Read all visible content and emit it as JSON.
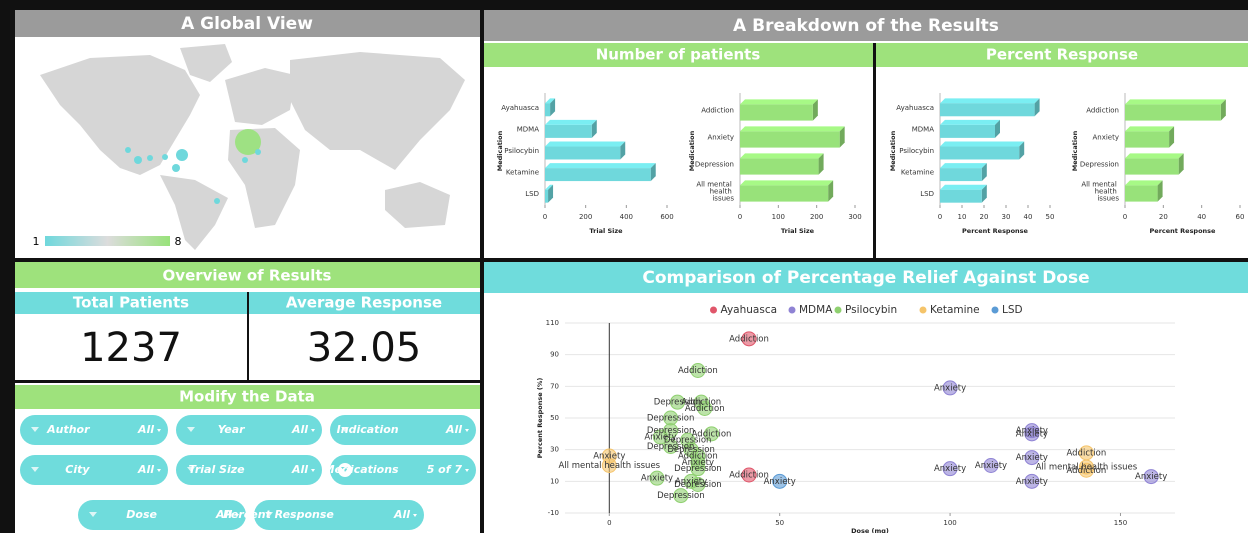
{
  "headers": {
    "global": "A Global View",
    "breakdown": "A Breakdown of the Results",
    "patients": "Number of patients",
    "percent": "Percent Response",
    "overview": "Overview of Results",
    "comparison": "Comparison of Percentage Relief Against Dose",
    "modify": "Modify the Data"
  },
  "map": {
    "legend_min": 1,
    "legend_max": 8
  },
  "kpis": [
    {
      "label": "Total Patients",
      "value": 1237
    },
    {
      "label": "Average Response",
      "value": 32.05
    }
  ],
  "filters": [
    {
      "name": "Author",
      "value": "All"
    },
    {
      "name": "Year",
      "value": "All"
    },
    {
      "name": "Indication",
      "value": "All"
    },
    {
      "name": "City",
      "value": "All"
    },
    {
      "name": "Trial Size",
      "value": "All"
    },
    {
      "name": "Medications",
      "value": "5 of 7"
    },
    {
      "name": "Dose",
      "value": "All"
    },
    {
      "name": "Percent Response",
      "value": "All"
    }
  ],
  "chart_data": [
    {
      "type": "bar",
      "orientation": "horizontal",
      "ylabel": "Medication",
      "xlabel": "Trial Size",
      "color": "#6fd8dc",
      "categories": [
        "Ayahuasca",
        "MDMA",
        "Psilocybin",
        "Ketamine",
        "LSD"
      ],
      "values": [
        25,
        230,
        370,
        520,
        15
      ],
      "xlim": [
        0,
        600
      ],
      "xticks": [
        0,
        200,
        400,
        600
      ]
    },
    {
      "type": "bar",
      "orientation": "horizontal",
      "ylabel": "Medication",
      "xlabel": "Trial Size",
      "color": "#98e27a",
      "categories": [
        "Addiction",
        "Anxiety",
        "Depression",
        "All mental health issues"
      ],
      "values": [
        190,
        260,
        205,
        230
      ],
      "xlim": [
        0,
        300
      ],
      "xticks": [
        0,
        100,
        200,
        300
      ]
    },
    {
      "type": "bar",
      "orientation": "horizontal",
      "ylabel": "Medication",
      "xlabel": "Percent Response",
      "color": "#6fd8dc",
      "categories": [
        "Ayahuasca",
        "MDMA",
        "Psilocybin",
        "Ketamine",
        "LSD"
      ],
      "values": [
        43,
        25,
        36,
        19,
        19
      ],
      "xlim": [
        0,
        50
      ],
      "xticks": [
        0,
        10,
        20,
        30,
        40,
        50
      ]
    },
    {
      "type": "bar",
      "orientation": "horizontal",
      "ylabel": "Medication",
      "xlabel": "Percent Response",
      "color": "#98e27a",
      "categories": [
        "Addiction",
        "Anxiety",
        "Depression",
        "All mental health issues"
      ],
      "values": [
        50,
        23,
        28,
        17
      ],
      "xlim": [
        0,
        60
      ],
      "xticks": [
        0,
        20,
        40,
        60
      ]
    },
    {
      "type": "scatter",
      "xlabel": "Dose (mg)",
      "ylabel": "Percent Response (%)",
      "xlim": [
        -13,
        166
      ],
      "xticks": [
        0,
        50,
        100,
        150
      ],
      "ylim": [
        -10,
        110
      ],
      "yticks": [
        -10,
        10,
        30,
        50,
        70,
        90,
        110
      ],
      "series": [
        {
          "name": "Ayahuasca",
          "color": "#e0566a",
          "x": [
            41,
            41
          ],
          "values": [
            100,
            14
          ],
          "labels": [
            "Addiction",
            "Addiction"
          ]
        },
        {
          "name": "MDMA",
          "color": "#8f83d4",
          "x": [
            100,
            100,
            112,
            124,
            124,
            124,
            124,
            159
          ],
          "values": [
            69,
            18,
            20,
            42,
            40,
            25,
            10,
            13
          ],
          "labels": [
            "Anxiety",
            "Anxiety",
            "Anxiety",
            "Anxiety",
            "Anxiety",
            "Anxiety",
            "Anxiety",
            "Anxiety"
          ]
        },
        {
          "name": "Psilocybin",
          "color": "#8fd070",
          "x": [
            26,
            20,
            27,
            28,
            18,
            18,
            30,
            15,
            23,
            18,
            24,
            26,
            26,
            26,
            14,
            24,
            26,
            21
          ],
          "values": [
            80,
            60,
            60,
            56,
            50,
            42,
            40,
            38,
            36,
            32,
            30,
            26,
            22,
            18,
            12,
            10,
            8,
            1
          ],
          "labels": [
            "Addiction",
            "Depression",
            "Addiction",
            "Addiction",
            "Depression",
            "Depression",
            "Addiction",
            "Anxiety",
            "Depression",
            "Depression",
            "Depression",
            "Addiction",
            "Anxiety",
            "Depression",
            "Anxiety",
            "Anxiety",
            "Depression",
            "Depression"
          ]
        },
        {
          "name": "Ketamine",
          "color": "#f5c46a",
          "x": [
            0,
            0,
            140,
            140,
            140
          ],
          "values": [
            26,
            20,
            28,
            19,
            17
          ],
          "labels": [
            "Anxiety",
            "All mental health issues",
            "Addiction",
            "All mental health issues",
            "Addiction"
          ]
        },
        {
          "name": "LSD",
          "color": "#5b9bd5",
          "x": [
            50
          ],
          "values": [
            10
          ],
          "labels": [
            "Anxiety"
          ]
        }
      ]
    }
  ]
}
